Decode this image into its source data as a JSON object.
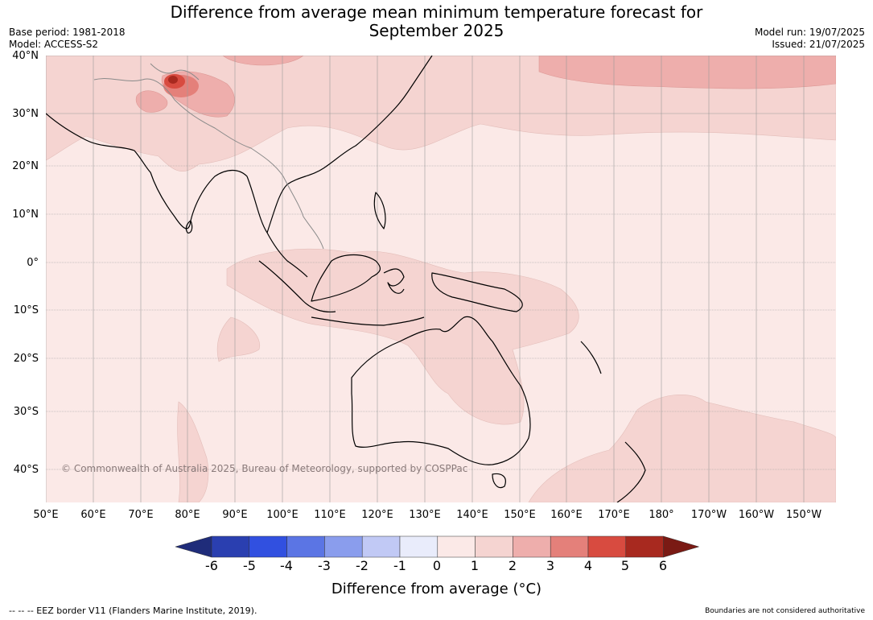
{
  "title_line1": "Difference from average mean minimum temperature forecast for",
  "title_line2": "September 2025",
  "meta_left": {
    "base_period": "Base period: 1981-2018",
    "model": "Model: ACCESS-S2"
  },
  "meta_right": {
    "model_run": "Model run: 19/07/2025",
    "issued": "Issued: 21/07/2025"
  },
  "copyright": "© Commonwealth of Australia 2025, Bureau of Meteorology, supported by COSPPac",
  "lat_labels": [
    "40°N",
    "30°N",
    "20°N",
    "10°N",
    "0°",
    "10°S",
    "20°S",
    "30°S",
    "40°S"
  ],
  "lon_labels": [
    "50°E",
    "60°E",
    "70°E",
    "80°E",
    "90°E",
    "100°E",
    "110°E",
    "120°E",
    "130°E",
    "140°E",
    "150°E",
    "160°E",
    "170°E",
    "180°",
    "170°W",
    "160°W",
    "150°W"
  ],
  "colorbar": {
    "title": "Difference from average (°C)",
    "tick_labels": [
      "-6",
      "-5",
      "-4",
      "-3",
      "-2",
      "-1",
      "0",
      "1",
      "2",
      "3",
      "4",
      "5",
      "6"
    ],
    "colors": [
      "#1f2c7a",
      "#2a3fb0",
      "#3150e0",
      "#5b75e4",
      "#8a9ded",
      "#c1c9f5",
      "#e9ecfb",
      "#fbe9e7",
      "#f5d4d1",
      "#eeaeac",
      "#e4807a",
      "#d84b40",
      "#a8291f",
      "#7a1a14"
    ]
  },
  "eez_note": "-- -- -- EEZ border V11 (Flanders Marine Institute, 2019).",
  "boundaries_note": "Boundaries are not considered authoritative"
}
